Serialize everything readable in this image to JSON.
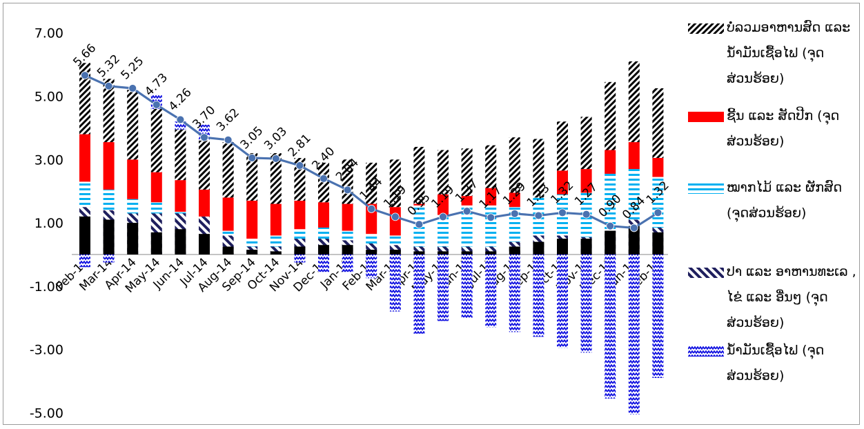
{
  "chart_data": {
    "type": "bar",
    "stacked": true,
    "title": "",
    "xlabel": "",
    "ylabel": "",
    "ylim": [
      -5,
      7
    ],
    "yticks": [
      "7.00",
      "5.00",
      "3.00",
      "1.00",
      "-1.00",
      "-3.00",
      "-5.00"
    ],
    "grid": false,
    "legend_position": "right",
    "categories": [
      "Feb-14",
      "Mar-14",
      "Apr-14",
      "May-14",
      "Jun-14",
      "Jul-14",
      "Aug-14",
      "Sep-14",
      "Oct-14",
      "Nov-14",
      "Dec-14",
      "Jan-15",
      "Feb-15",
      "Mar-15",
      "Apr-15",
      "May-15",
      "Jun-15",
      "Jul-15",
      "Aug-15",
      "Sep-15",
      "Oct-15",
      "Nov-15",
      "Dec-15",
      "Jan-16",
      "Feb-16"
    ],
    "series": [
      {
        "name": "ປາ ແລະ ອາຫານທະເລ , ໄຂ່ ແລະ ອື່ນໆ (ຈຸດສ່ວນຮ້ອຍ)",
        "kind": "bar",
        "pattern": "fish",
        "color": "#1f1f5e",
        "values": [
          1.5,
          1.4,
          1.3,
          1.3,
          1.3,
          1.2,
          0.6,
          0.25,
          0.25,
          0.5,
          0.5,
          0.45,
          0.35,
          0.3,
          0.25,
          0.25,
          0.25,
          0.25,
          0.4,
          0.6,
          0.6,
          0.55,
          0.75,
          1.1,
          0.85
        ]
      },
      {
        "name": "ໝາກໄມ້ ແລະ ຜັກສົດ (ຈຸດສ່ວນຮ້ອຍ)",
        "kind": "bar",
        "pattern": "lines",
        "color": "#00b0f0",
        "values": [
          0.8,
          0.65,
          0.45,
          0.35,
          0.05,
          0.0,
          0.15,
          0.25,
          0.35,
          0.3,
          0.35,
          0.3,
          0.3,
          0.3,
          1.3,
          1.0,
          1.3,
          1.3,
          1.1,
          1.2,
          1.3,
          1.4,
          1.8,
          1.6,
          1.6
        ]
      },
      {
        "name": "ຊີ້ນ ແລະ ສັດປີກ (ຈຸດສ່ວນຮ້ອຍ)",
        "kind": "bar",
        "pattern": "solid",
        "color": "#ff0000",
        "values": [
          1.5,
          1.5,
          1.25,
          0.95,
          1.0,
          0.85,
          1.05,
          1.2,
          1.0,
          0.9,
          0.8,
          0.85,
          0.95,
          0.9,
          0.05,
          0.65,
          0.3,
          0.55,
          0.45,
          0.0,
          0.75,
          0.75,
          0.75,
          0.85,
          0.6
        ]
      },
      {
        "name": "ບໍ່ລວມອາຫານສົດ ແລະ ນ້ຳມັນເຊື້ອໄຟ (ຈຸດສ່ວນຮ້ອຍ)",
        "kind": "bar",
        "pattern": "hatch",
        "color": "#000000",
        "values": [
          2.25,
          2.0,
          2.2,
          2.0,
          1.6,
          1.55,
          1.75,
          1.5,
          1.6,
          1.35,
          1.25,
          1.4,
          1.3,
          1.5,
          1.8,
          1.4,
          1.5,
          1.35,
          1.75,
          1.85,
          1.55,
          1.65,
          2.15,
          2.55,
          2.2
        ]
      },
      {
        "name": "ນ້ຳມັນເຊື້ອໄຟ (ຈຸດສ່ວນຮ້ອຍ)",
        "kind": "bar",
        "pattern": "zigzag",
        "color": "#1010e0",
        "values": [
          -0.4,
          -0.25,
          0.0,
          0.45,
          0.25,
          0.5,
          0.0,
          0.0,
          0.0,
          -0.25,
          -0.55,
          -0.55,
          -0.75,
          -1.8,
          -2.5,
          -2.1,
          -2.0,
          -2.3,
          -2.45,
          -2.6,
          -2.95,
          -3.1,
          -4.55,
          -5.05,
          -3.9
        ]
      },
      {
        "name": "ແຂບ",
        "kind": "base",
        "pattern": "solid",
        "color": "#000000",
        "values": [
          1.2,
          1.1,
          1.0,
          0.7,
          0.8,
          0.65,
          0.25,
          0.15,
          0.1,
          0.25,
          0.3,
          0.3,
          0.15,
          0.15,
          0.1,
          0.1,
          0.1,
          0.1,
          0.25,
          0.4,
          0.5,
          0.5,
          0.75,
          0.9,
          0.7
        ]
      },
      {
        "name": "Inflation",
        "kind": "line",
        "color": "#4a72b0",
        "values": [
          5.66,
          5.32,
          5.25,
          4.73,
          4.26,
          3.7,
          3.62,
          3.05,
          3.03,
          2.81,
          2.4,
          2.04,
          1.44,
          1.19,
          0.95,
          1.19,
          1.37,
          1.17,
          1.29,
          1.23,
          1.32,
          1.27,
          0.9,
          0.84,
          1.32
        ],
        "labels": [
          "5.66",
          "5.32",
          "5.25",
          "4.73",
          "4.26",
          "3.70",
          "3.62",
          "3.05",
          "3.03",
          "2.81",
          "2.40",
          "2.04",
          "1.44",
          "1.19",
          "0.95",
          "1.19",
          "1.37",
          "1.17",
          "1.29",
          "1.23",
          "1.32",
          "1.27",
          "0.90",
          "0.84",
          "1.32"
        ]
      }
    ]
  },
  "legend": {
    "items": [
      {
        "label": "ບໍ່ລວມອາຫານສົດ ແລະ ນ້ຳມັນເຊື້ອໄຟ (ຈຸດສ່ວນຮ້ອຍ)",
        "pattern": "hatch"
      },
      {
        "label": "ຊີ້ນ ແລະ ສັດປີກ (ຈຸດສ່ວນຮ້ອຍ)",
        "pattern": "solid"
      },
      {
        "label": "ໝາກໄມ້ ແລະ ຜັກສົດ (ຈຸດສ່ວນຮ້ອຍ)",
        "pattern": "lines"
      },
      {
        "label": "ປາ ແລະ ອາຫານທະເລ , ໄຂ່ ແລະ ອື່ນໆ (ຈຸດສ່ວນຮ້ອຍ)",
        "pattern": "fish"
      },
      {
        "label": "ນ້ຳມັນເຊື້ອໄຟ (ຈຸດສ່ວນຮ້ອຍ)",
        "pattern": "zigzag"
      }
    ]
  }
}
